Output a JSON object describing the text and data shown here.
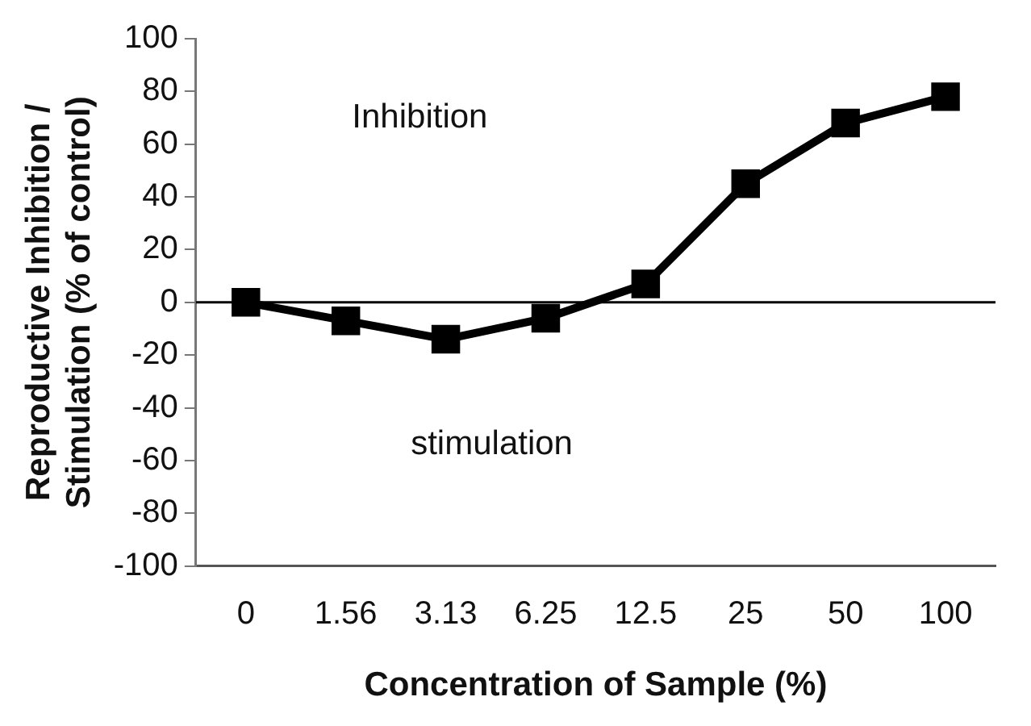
{
  "chart_data": {
    "type": "line",
    "xlabel": "Concentration of Sample (%)",
    "ylabel": "Reproductive Inhibition / Stimulation (% of control)",
    "categories": [
      "0",
      "1.56",
      "3.13",
      "6.25",
      "12.5",
      "25",
      "50",
      "100"
    ],
    "values": [
      0,
      -7,
      -14,
      -6,
      7,
      45,
      68,
      78
    ],
    "color": "#000000",
    "marker": "square",
    "line_style": "solid",
    "ylim": [
      -100,
      100
    ],
    "yticks": [
      -100,
      -80,
      -60,
      -40,
      -20,
      0,
      20,
      40,
      60,
      80,
      100
    ],
    "grid": false,
    "legend": false,
    "ref_lines": [
      {
        "axis": "y",
        "value": 0,
        "color": "#000000"
      }
    ],
    "annotations": [
      "Inhibition",
      "stimulation"
    ]
  }
}
